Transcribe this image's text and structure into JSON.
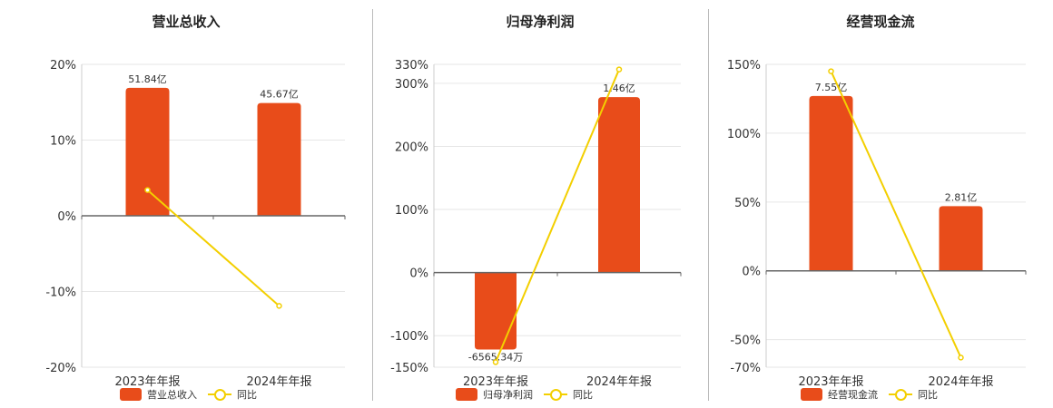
{
  "colors": {
    "bar": "#e84c1a",
    "line": "#f3cf00",
    "grid": "#e6e6e6",
    "axis": "#666666"
  },
  "chart_data": [
    {
      "type": "bar",
      "title": "营业总收入",
      "categories": [
        "2023年年报",
        "2024年年报"
      ],
      "series": [
        {
          "name": "营业总收入",
          "kind": "bar",
          "values": [
            16.9,
            14.9
          ],
          "labels": [
            "51.84亿",
            "45.67亿"
          ]
        },
        {
          "name": "同比",
          "kind": "line",
          "values": [
            3.4,
            -11.9
          ]
        }
      ],
      "ylim": [
        -20,
        20
      ],
      "yticks": [
        20,
        10,
        0,
        -10,
        -20
      ],
      "ytick_labels": [
        "20%",
        "10%",
        "0%",
        "-10%",
        "-20%"
      ]
    },
    {
      "type": "bar",
      "title": "归母净利润",
      "categories": [
        "2023年年报",
        "2024年年报"
      ],
      "series": [
        {
          "name": "归母净利润",
          "kind": "bar",
          "values": [
            -122,
            278
          ],
          "labels": [
            "-6565.34万",
            "1.46亿"
          ]
        },
        {
          "name": "同比",
          "kind": "line",
          "values": [
            -142,
            322
          ]
        }
      ],
      "ylim": [
        -150,
        330
      ],
      "yticks": [
        330,
        300,
        200,
        100,
        0,
        -100,
        -150
      ],
      "ytick_labels": [
        "330%",
        "300%",
        "200%",
        "100%",
        "0%",
        "-100%",
        "-150%"
      ]
    },
    {
      "type": "bar",
      "title": "经营现金流",
      "categories": [
        "2023年年报",
        "2024年年报"
      ],
      "series": [
        {
          "name": "经营现金流",
          "kind": "bar",
          "values": [
            127,
            47
          ],
          "labels": [
            "7.55亿",
            "2.81亿"
          ]
        },
        {
          "name": "同比",
          "kind": "line",
          "values": [
            145,
            -63
          ]
        }
      ],
      "ylim": [
        -70,
        150
      ],
      "yticks": [
        150,
        100,
        50,
        0,
        -50,
        -70
      ],
      "ytick_labels": [
        "150%",
        "100%",
        "50%",
        "0%",
        "-50%",
        "-70%"
      ]
    }
  ]
}
